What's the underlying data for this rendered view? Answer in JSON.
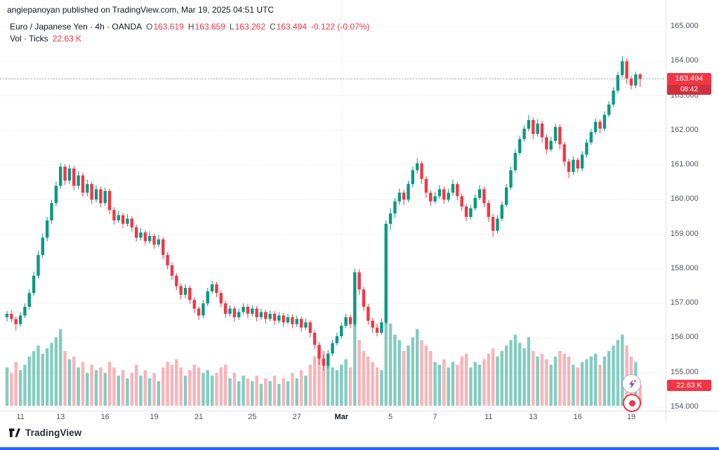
{
  "watermark": "angiepanoyan published on TradingView.com, Mar 19, 2025 04:51 UTC",
  "legend": {
    "title": "Euro / Japanese Yen · 4h · OANDA",
    "o_label": "O",
    "o_value": "163.619",
    "h_label": "H",
    "h_value": "163.659",
    "l_label": "L",
    "l_value": "163.262",
    "c_label": "C",
    "c_value": "163.494",
    "change": "-0.122 (-0.07%)",
    "vol_label": "Vol · Ticks",
    "vol_value": "22.63 K"
  },
  "price_scale": {
    "current_price": "163.494",
    "countdown": "08:42",
    "volume_badge": "22.63 K"
  },
  "footer": {
    "brand": "TradingView"
  },
  "colors": {
    "up": "#089981",
    "down": "#f23645",
    "vol_up": "rgba(8,153,129,0.5)",
    "vol_down": "rgba(242,54,69,0.38)",
    "badge_bg": "#f23645",
    "accent_blue": "#2962ff",
    "grid": "#d6d9e0",
    "price_line": "#9598a1",
    "text_dark": "#131722",
    "axis_text": "#50535e"
  },
  "chart_data": {
    "type": "candlestick",
    "title": "Euro / Japanese Yen · 4h · OANDA",
    "symbol": "Euro / Japanese Yen",
    "interval": "4h",
    "exchange": "OANDA",
    "volume_study": "Vol · Ticks",
    "y_axis": {
      "min": 154,
      "max": 165,
      "tick_step": 1,
      "ticks": [
        "165.000",
        "164.000",
        "163.000",
        "162.000",
        "161.000",
        "160.000",
        "159.000",
        "158.000",
        "157.000",
        "156.000",
        "155.000",
        "154.000"
      ]
    },
    "x_labels": [
      {
        "text": "11",
        "i": 3
      },
      {
        "text": "13",
        "i": 12
      },
      {
        "text": "16",
        "i": 22
      },
      {
        "text": "19",
        "i": 33
      },
      {
        "text": "21",
        "i": 43
      },
      {
        "text": "25",
        "i": 55
      },
      {
        "text": "27",
        "i": 65
      },
      {
        "text": "Mar",
        "i": 75,
        "bold": true
      },
      {
        "text": "5",
        "i": 86
      },
      {
        "text": "7",
        "i": 96
      },
      {
        "text": "11",
        "i": 108
      },
      {
        "text": "13",
        "i": 118
      },
      {
        "text": "16",
        "i": 128
      },
      {
        "text": "19",
        "i": 140
      }
    ],
    "month_line_index": 75,
    "current": {
      "open": 163.619,
      "high": 163.659,
      "low": 163.262,
      "close": 163.494,
      "change": -0.122,
      "change_pct": -0.07,
      "volume_k": 22.63,
      "countdown": "08:42"
    },
    "candles_ohlc": [
      [
        156.6,
        156.78,
        156.48,
        156.7
      ],
      [
        156.7,
        156.8,
        156.45,
        156.55
      ],
      [
        156.55,
        156.62,
        156.22,
        156.4
      ],
      [
        156.4,
        156.75,
        156.32,
        156.65
      ],
      [
        156.65,
        157.0,
        156.58,
        156.9
      ],
      [
        156.9,
        157.4,
        156.82,
        157.3
      ],
      [
        157.3,
        157.92,
        157.22,
        157.8
      ],
      [
        157.8,
        158.52,
        157.72,
        158.4
      ],
      [
        158.4,
        159.02,
        158.32,
        158.9
      ],
      [
        158.9,
        159.5,
        158.8,
        159.4
      ],
      [
        159.4,
        160.0,
        159.3,
        159.9
      ],
      [
        159.9,
        160.52,
        159.82,
        160.4
      ],
      [
        160.4,
        161.05,
        160.32,
        160.95
      ],
      [
        160.95,
        161.02,
        160.42,
        160.55
      ],
      [
        160.55,
        161.0,
        160.45,
        160.9
      ],
      [
        160.9,
        160.98,
        160.28,
        160.4
      ],
      [
        160.4,
        160.82,
        160.3,
        160.7
      ],
      [
        160.7,
        160.78,
        160.08,
        160.2
      ],
      [
        160.2,
        160.58,
        160.1,
        160.45
      ],
      [
        160.45,
        160.52,
        159.88,
        160.0
      ],
      [
        160.0,
        160.42,
        159.92,
        160.3
      ],
      [
        160.3,
        160.38,
        159.78,
        159.9
      ],
      [
        159.9,
        160.35,
        159.82,
        160.25
      ],
      [
        160.25,
        160.32,
        159.58,
        159.7
      ],
      [
        159.7,
        159.78,
        159.28,
        159.4
      ],
      [
        159.4,
        159.68,
        159.32,
        159.55
      ],
      [
        159.55,
        159.62,
        159.18,
        159.3
      ],
      [
        159.3,
        159.58,
        159.22,
        159.45
      ],
      [
        159.45,
        159.52,
        159.08,
        159.2
      ],
      [
        159.2,
        159.28,
        158.78,
        158.9
      ],
      [
        158.9,
        159.18,
        158.82,
        159.05
      ],
      [
        159.05,
        159.12,
        158.68,
        158.8
      ],
      [
        158.8,
        159.08,
        158.72,
        158.95
      ],
      [
        158.95,
        159.02,
        158.58,
        158.7
      ],
      [
        158.7,
        158.98,
        158.62,
        158.85
      ],
      [
        158.85,
        158.92,
        158.28,
        158.4
      ],
      [
        158.4,
        158.48,
        157.98,
        158.1
      ],
      [
        158.1,
        158.18,
        157.68,
        157.8
      ],
      [
        157.8,
        157.88,
        157.38,
        157.5
      ],
      [
        157.5,
        157.58,
        157.12,
        157.25
      ],
      [
        157.25,
        157.55,
        157.15,
        157.45
      ],
      [
        157.45,
        157.52,
        156.98,
        157.1
      ],
      [
        157.1,
        157.18,
        156.72,
        156.85
      ],
      [
        156.85,
        156.92,
        156.52,
        156.65
      ],
      [
        156.65,
        157.1,
        156.58,
        157.0
      ],
      [
        157.0,
        157.45,
        156.92,
        157.35
      ],
      [
        157.35,
        157.65,
        157.28,
        157.55
      ],
      [
        157.55,
        157.62,
        157.18,
        157.3
      ],
      [
        157.3,
        157.38,
        156.88,
        157.0
      ],
      [
        157.0,
        157.08,
        156.58,
        156.7
      ],
      [
        156.7,
        156.95,
        156.62,
        156.85
      ],
      [
        156.85,
        156.92,
        156.48,
        156.6
      ],
      [
        156.6,
        156.85,
        156.52,
        156.75
      ],
      [
        156.75,
        157.0,
        156.68,
        156.9
      ],
      [
        156.9,
        156.98,
        156.58,
        156.7
      ],
      [
        156.7,
        156.95,
        156.62,
        156.85
      ],
      [
        156.85,
        156.92,
        156.48,
        156.6
      ],
      [
        156.6,
        156.85,
        156.52,
        156.75
      ],
      [
        156.75,
        156.82,
        156.42,
        156.55
      ],
      [
        156.55,
        156.8,
        156.48,
        156.7
      ],
      [
        156.7,
        156.78,
        156.38,
        156.5
      ],
      [
        156.5,
        156.75,
        156.42,
        156.65
      ],
      [
        156.65,
        156.72,
        156.32,
        156.45
      ],
      [
        156.45,
        156.7,
        156.38,
        156.6
      ],
      [
        156.6,
        156.68,
        156.28,
        156.4
      ],
      [
        156.4,
        156.65,
        156.32,
        156.55
      ],
      [
        156.55,
        156.62,
        156.18,
        156.3
      ],
      [
        156.3,
        156.55,
        156.22,
        156.45
      ],
      [
        156.45,
        156.52,
        156.02,
        156.15
      ],
      [
        156.15,
        156.22,
        155.68,
        155.8
      ],
      [
        155.8,
        155.88,
        155.22,
        155.4
      ],
      [
        155.4,
        155.52,
        155.05,
        155.2
      ],
      [
        155.2,
        155.65,
        155.12,
        155.55
      ],
      [
        155.55,
        155.95,
        155.48,
        155.85
      ],
      [
        155.85,
        156.15,
        155.78,
        156.05
      ],
      [
        156.05,
        156.45,
        155.98,
        156.35
      ],
      [
        156.35,
        156.7,
        156.28,
        156.6
      ],
      [
        156.6,
        156.68,
        156.28,
        156.4
      ],
      [
        156.4,
        158.0,
        156.32,
        157.9
      ],
      [
        157.9,
        157.98,
        157.25,
        157.4
      ],
      [
        157.4,
        157.48,
        156.78,
        156.9
      ],
      [
        156.9,
        156.98,
        156.38,
        156.5
      ],
      [
        156.5,
        156.58,
        156.15,
        156.3
      ],
      [
        156.3,
        156.42,
        156.05,
        156.15
      ],
      [
        156.15,
        156.55,
        156.08,
        156.45
      ],
      [
        156.45,
        159.4,
        156.38,
        159.3
      ],
      [
        159.3,
        159.75,
        159.12,
        159.6
      ],
      [
        159.6,
        160.05,
        159.48,
        159.95
      ],
      [
        159.95,
        160.32,
        159.85,
        160.2
      ],
      [
        160.2,
        160.28,
        159.85,
        160.0
      ],
      [
        160.0,
        160.55,
        159.92,
        160.45
      ],
      [
        160.45,
        160.95,
        160.35,
        160.85
      ],
      [
        160.85,
        161.2,
        160.75,
        161.05
      ],
      [
        161.05,
        161.12,
        160.45,
        160.6
      ],
      [
        160.6,
        160.68,
        160.05,
        160.2
      ],
      [
        160.2,
        160.28,
        159.82,
        159.95
      ],
      [
        159.95,
        160.22,
        159.88,
        160.1
      ],
      [
        160.1,
        160.42,
        160.02,
        160.3
      ],
      [
        160.3,
        160.38,
        159.88,
        160.0
      ],
      [
        160.0,
        160.32,
        159.92,
        160.2
      ],
      [
        160.2,
        160.58,
        160.12,
        160.45
      ],
      [
        160.45,
        160.52,
        159.98,
        160.1
      ],
      [
        160.1,
        160.18,
        159.68,
        159.8
      ],
      [
        159.8,
        159.88,
        159.38,
        159.5
      ],
      [
        159.5,
        159.85,
        159.42,
        159.75
      ],
      [
        159.75,
        160.15,
        159.68,
        160.05
      ],
      [
        160.05,
        160.42,
        159.98,
        160.3
      ],
      [
        160.3,
        160.38,
        159.78,
        159.9
      ],
      [
        159.9,
        159.98,
        159.35,
        159.5
      ],
      [
        159.5,
        159.58,
        158.92,
        159.1
      ],
      [
        159.1,
        159.55,
        159.02,
        159.45
      ],
      [
        159.45,
        159.95,
        159.38,
        159.85
      ],
      [
        159.85,
        160.45,
        159.78,
        160.35
      ],
      [
        160.35,
        160.95,
        160.28,
        160.85
      ],
      [
        160.85,
        161.45,
        160.78,
        161.35
      ],
      [
        161.35,
        161.85,
        161.28,
        161.75
      ],
      [
        161.75,
        162.15,
        161.68,
        162.05
      ],
      [
        162.05,
        162.45,
        161.98,
        162.3
      ],
      [
        162.3,
        162.38,
        161.75,
        161.9
      ],
      [
        161.9,
        162.32,
        161.82,
        162.2
      ],
      [
        162.2,
        162.28,
        161.65,
        161.8
      ],
      [
        161.8,
        161.88,
        161.32,
        161.45
      ],
      [
        161.45,
        161.82,
        161.38,
        161.7
      ],
      [
        161.7,
        162.2,
        161.62,
        162.1
      ],
      [
        162.1,
        162.18,
        161.45,
        161.6
      ],
      [
        161.6,
        161.68,
        160.95,
        161.1
      ],
      [
        161.1,
        161.18,
        160.62,
        160.8
      ],
      [
        160.8,
        161.25,
        160.72,
        161.15
      ],
      [
        161.15,
        161.22,
        160.78,
        160.9
      ],
      [
        160.9,
        161.4,
        160.82,
        161.3
      ],
      [
        161.3,
        161.75,
        161.22,
        161.65
      ],
      [
        161.65,
        162.05,
        161.58,
        161.95
      ],
      [
        161.95,
        162.35,
        161.88,
        162.25
      ],
      [
        162.25,
        162.32,
        161.92,
        162.05
      ],
      [
        162.05,
        162.55,
        161.98,
        162.45
      ],
      [
        162.45,
        162.85,
        162.38,
        162.75
      ],
      [
        162.75,
        163.25,
        162.68,
        163.15
      ],
      [
        163.15,
        163.7,
        163.08,
        163.6
      ],
      [
        163.6,
        164.15,
        163.52,
        164.0
      ],
      [
        164.0,
        164.08,
        163.35,
        163.5
      ],
      [
        163.5,
        163.58,
        163.18,
        163.3
      ],
      [
        163.3,
        163.7,
        163.22,
        163.62
      ],
      [
        163.619,
        163.659,
        163.262,
        163.494
      ]
    ],
    "volumes_k": [
      42,
      36,
      48,
      39,
      45,
      54,
      60,
      66,
      57,
      63,
      69,
      75,
      84,
      60,
      51,
      54,
      42,
      48,
      36,
      45,
      39,
      42,
      36,
      48,
      42,
      33,
      39,
      30,
      36,
      45,
      33,
      39,
      30,
      36,
      27,
      42,
      48,
      45,
      51,
      42,
      33,
      39,
      45,
      42,
      36,
      39,
      33,
      36,
      42,
      45,
      30,
      36,
      27,
      33,
      30,
      27,
      33,
      24,
      30,
      27,
      33,
      24,
      30,
      27,
      36,
      30,
      39,
      33,
      45,
      54,
      66,
      60,
      48,
      42,
      39,
      45,
      51,
      42,
      90,
      72,
      60,
      54,
      48,
      42,
      39,
      110,
      90,
      78,
      72,
      60,
      66,
      75,
      84,
      72,
      66,
      60,
      48,
      45,
      51,
      42,
      48,
      45,
      54,
      57,
      42,
      48,
      45,
      51,
      57,
      63,
      54,
      60,
      66,
      72,
      78,
      69,
      63,
      75,
      60,
      54,
      57,
      51,
      45,
      54,
      60,
      57,
      54,
      45,
      42,
      48,
      51,
      54,
      57,
      45,
      54,
      60,
      66,
      72,
      78,
      66,
      54,
      48,
      22.63
    ]
  }
}
